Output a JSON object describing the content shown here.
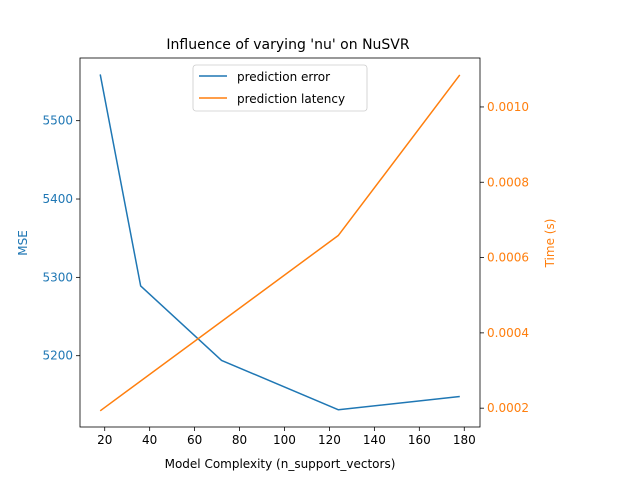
{
  "chart_data": {
    "type": "line",
    "title": "Influence of varying 'nu' on NuSVR",
    "xlabel": "Model Complexity (n_support_vectors)",
    "ylabel_left": "MSE",
    "ylabel_right": "Time (s)",
    "xlim": [
      9,
      187
    ],
    "ylim_left": [
      5109,
      5580
    ],
    "ylim_right": [
      0.00015,
      0.00113
    ],
    "xticks": [
      "20",
      "40",
      "60",
      "80",
      "100",
      "120",
      "140",
      "160",
      "180"
    ],
    "yticks_left": [
      "5200",
      "5300",
      "5400",
      "5500"
    ],
    "yticks_right": [
      "0.0002",
      "0.0004",
      "0.0006",
      "0.0008",
      "0.0010"
    ],
    "legend_position": "upper-center",
    "colors": {
      "error": "#1f77b4",
      "latency": "#ff7f0e",
      "axis": "#000000"
    },
    "series": [
      {
        "name": "prediction error",
        "axis": "left",
        "x": [
          18,
          36,
          72,
          124,
          178
        ],
        "y": [
          5559,
          5289,
          5194,
          5131,
          5148
        ]
      },
      {
        "name": "prediction latency",
        "axis": "right",
        "x": [
          18,
          124,
          178
        ],
        "y": [
          0.000193,
          0.000659,
          0.001085
        ]
      }
    ]
  }
}
